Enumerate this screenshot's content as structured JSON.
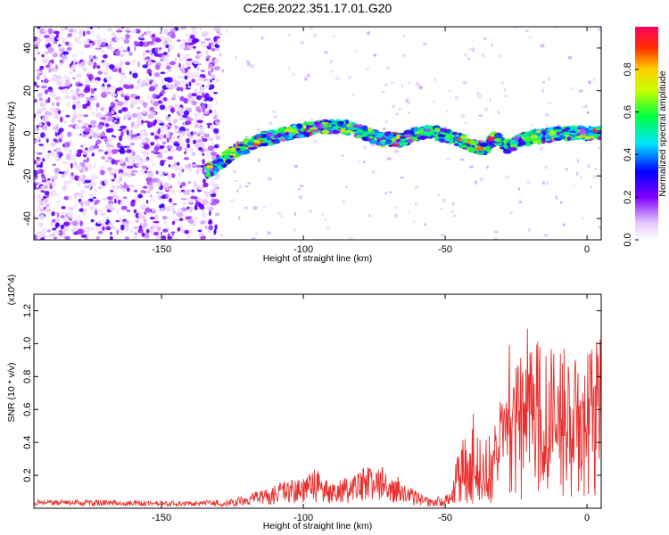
{
  "title": "C2E6.2022.351.17.01.G20",
  "chart_data": [
    {
      "type": "heatmap",
      "xlabel": "Height of straight line (km)",
      "ylabel": "Frequency (Hz)",
      "xlim": [
        -195,
        5
      ],
      "ylim": [
        -50,
        50
      ],
      "xticks": [
        -150,
        -100,
        -50,
        0
      ],
      "yticks": [
        -40,
        -20,
        0,
        20,
        40
      ],
      "colorbar": {
        "label": "Normalized spectral amplitude",
        "ticks": [
          0.0,
          0.2,
          0.4,
          0.6,
          0.8
        ],
        "range": [
          0.0,
          1.0
        ],
        "colormap": "rainbow (white-violet-blue-cyan-green-yellow-red)"
      },
      "ridge": [
        [
          -132,
          -17
        ],
        [
          -125,
          -9
        ],
        [
          -115,
          -3
        ],
        [
          -105,
          0
        ],
        [
          -95,
          3
        ],
        [
          -85,
          3
        ],
        [
          -78,
          0
        ],
        [
          -72,
          -3
        ],
        [
          -65,
          -3
        ],
        [
          -60,
          0
        ],
        [
          -55,
          1
        ],
        [
          -50,
          -1
        ],
        [
          -45,
          -3
        ],
        [
          -40,
          -6
        ],
        [
          -36,
          -7
        ],
        [
          -32,
          -2
        ],
        [
          -28,
          -6
        ],
        [
          -20,
          -2
        ],
        [
          -10,
          0
        ],
        [
          0,
          0
        ],
        [
          5,
          0
        ]
      ]
    },
    {
      "type": "line",
      "xlabel": "Height of straight line (km)",
      "ylabel": "SNR (10 * v/v)",
      "yscale_label": "(x10^4)",
      "xlim": [
        -195,
        5
      ],
      "ylim": [
        0,
        1.3
      ],
      "xticks": [
        -150,
        -100,
        -50,
        0
      ],
      "yticks": [
        0.2,
        0.4,
        0.6,
        0.8,
        1.0,
        1.2
      ],
      "series": [
        {
          "color": "#e8312f",
          "envelope": [
            [
              -195,
              0.04
            ],
            [
              -170,
              0.04
            ],
            [
              -140,
              0.03
            ],
            [
              -130,
              0.04
            ],
            [
              -120,
              0.08
            ],
            [
              -110,
              0.15
            ],
            [
              -100,
              0.2
            ],
            [
              -95,
              0.25
            ],
            [
              -90,
              0.15
            ],
            [
              -80,
              0.25
            ],
            [
              -70,
              0.25
            ],
            [
              -60,
              0.1
            ],
            [
              -55,
              0.05
            ],
            [
              -48,
              0.1
            ],
            [
              -45,
              0.4
            ],
            [
              -40,
              0.5
            ],
            [
              -35,
              0.45
            ],
            [
              -30,
              0.7
            ],
            [
              -25,
              0.9
            ],
            [
              -20,
              1.05
            ],
            [
              -15,
              1.0
            ],
            [
              -10,
              0.95
            ],
            [
              -5,
              0.9
            ],
            [
              0,
              0.95
            ],
            [
              5,
              1.05
            ]
          ]
        }
      ]
    }
  ]
}
